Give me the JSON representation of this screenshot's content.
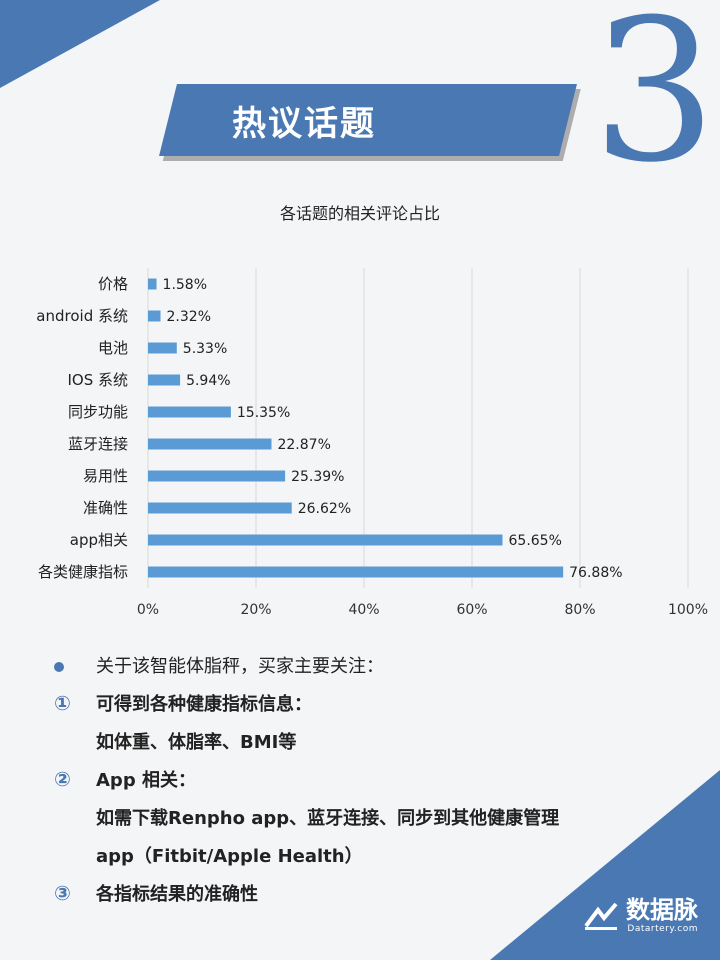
{
  "banner": {
    "title": "热议话题",
    "number": "3"
  },
  "chart_data": {
    "type": "bar",
    "orientation": "horizontal",
    "title": "各话题的相关评论占比",
    "categories": [
      "价格",
      "android 系统",
      "电池",
      "IOS 系统",
      "同步功能",
      "蓝牙连接",
      "易用性",
      "准确性",
      "app相关",
      "各类健康指标"
    ],
    "values": [
      1.58,
      2.32,
      5.33,
      5.94,
      15.35,
      22.87,
      25.39,
      26.62,
      65.65,
      76.88
    ],
    "value_labels": [
      "1.58%",
      "2.32%",
      "5.33%",
      "5.94%",
      "15.35%",
      "22.87%",
      "25.39%",
      "26.62%",
      "65.65%",
      "76.88%"
    ],
    "xlim": [
      0,
      100
    ],
    "x_ticks": [
      0,
      20,
      40,
      60,
      80,
      100
    ],
    "x_tick_labels": [
      "0%",
      "20%",
      "40%",
      "60%",
      "80%",
      "100%"
    ],
    "grid": true,
    "bar_color": "#5b9bd5"
  },
  "notes": {
    "intro": "关于该智能体脂秤，买家主要关注：",
    "items": [
      {
        "mark": "①",
        "text": "可得到各种健康指标信息：",
        "detail": [
          "如体重、体脂率、BMI等"
        ]
      },
      {
        "mark": "②",
        "text": "App 相关：",
        "detail": [
          "如需下载Renpho  app、蓝牙连接、同步到其他健康管理",
          "app（Fitbit/Apple Health）"
        ]
      },
      {
        "mark": "③",
        "text": "各指标结果的准确性",
        "detail": []
      }
    ]
  },
  "logo": {
    "name": "数据脉",
    "sub": "Datartery.com"
  },
  "colors": {
    "accent": "#4a78b3"
  }
}
